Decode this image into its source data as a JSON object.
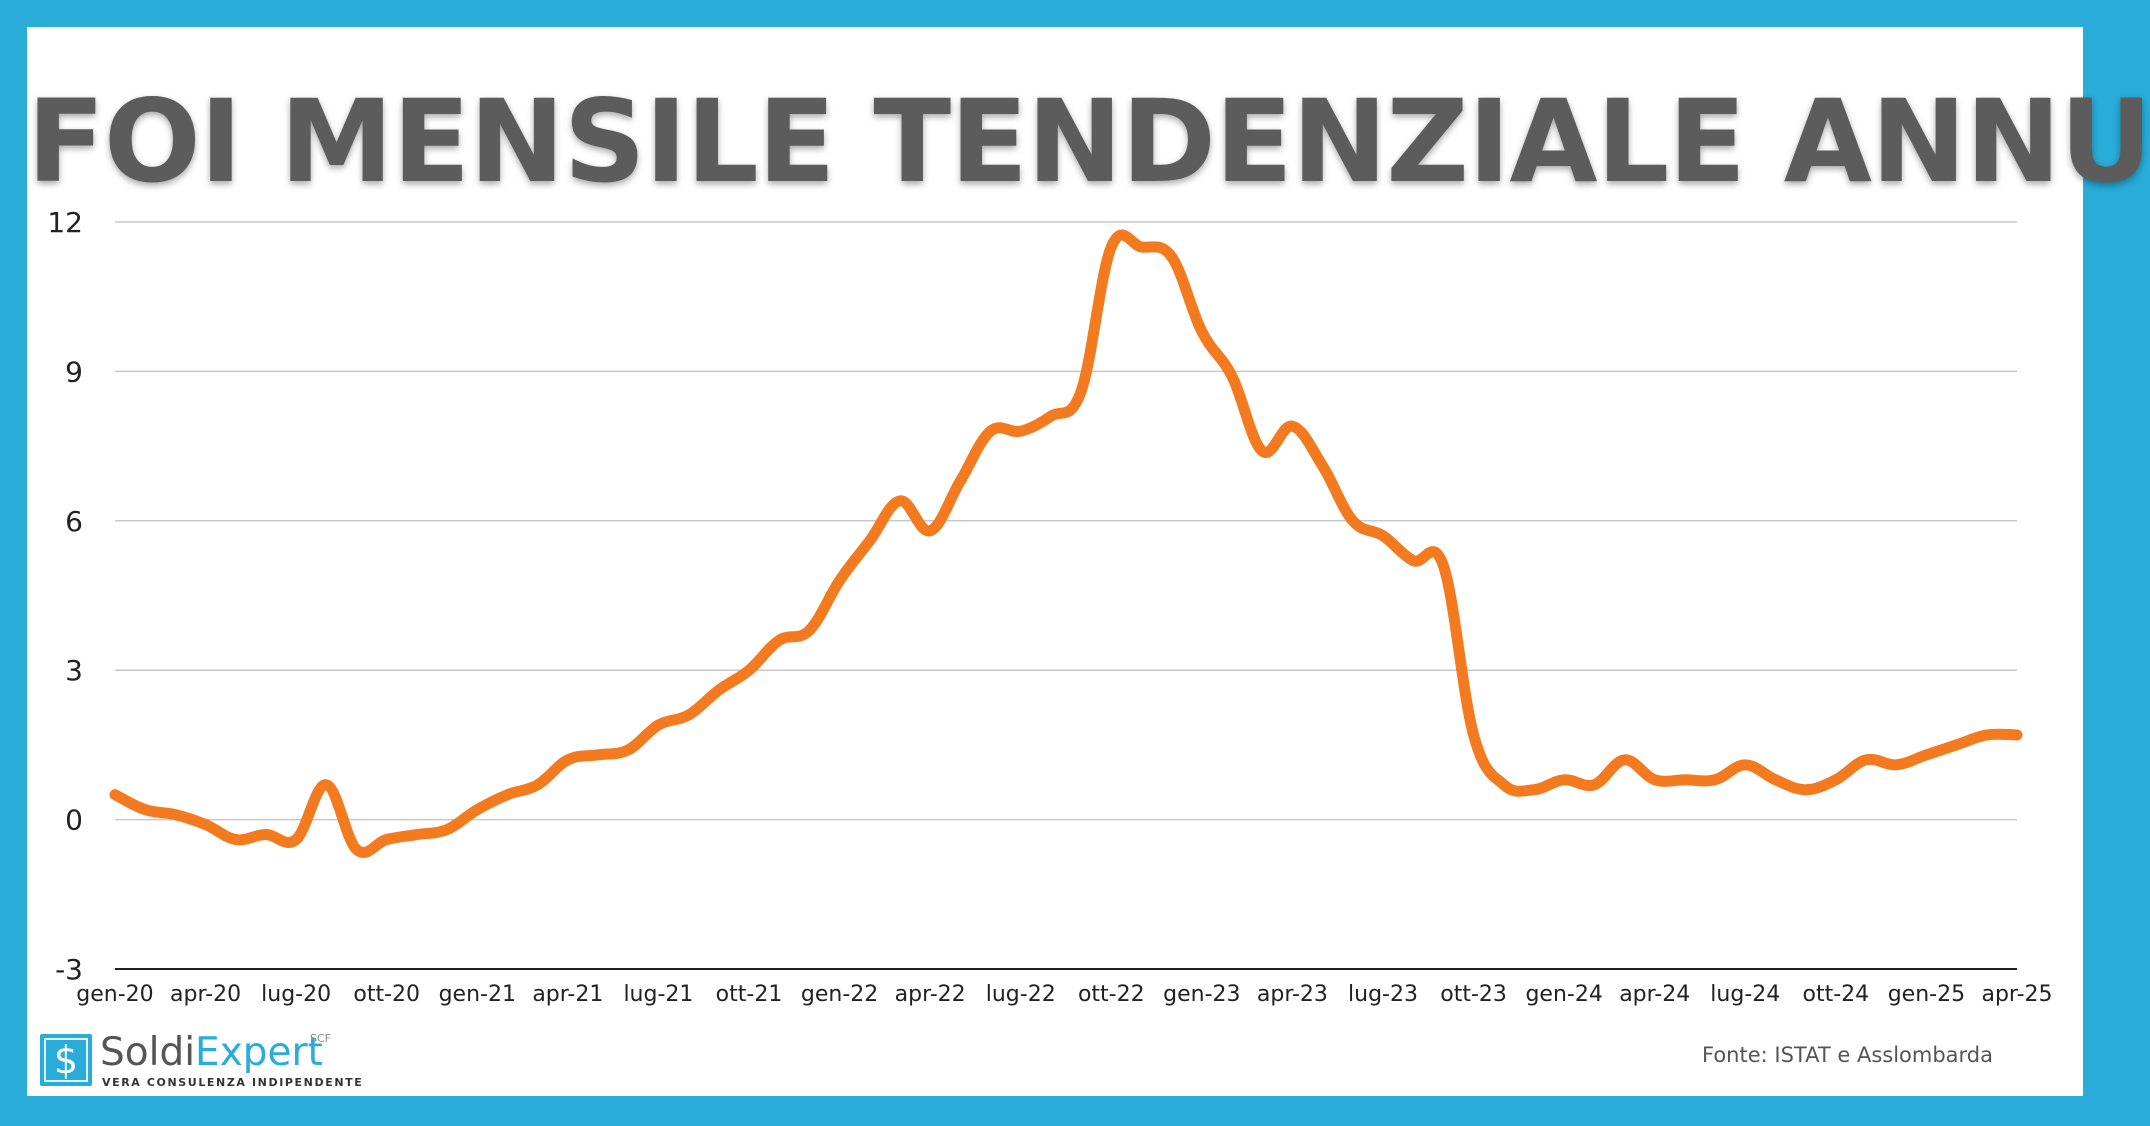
{
  "title": "FOI MENSILE TENDENZIALE ANNUO",
  "source": "Fonte: ISTAT e Asslombarda",
  "logo": {
    "symbol": "$",
    "name_part1": "Soldi",
    "name_part2": "Expert",
    "superscript": "SCF",
    "tagline": "VERA CONSULENZA INDIPENDENTE"
  },
  "colors": {
    "frame": "#29acd9",
    "line": "#f47a1f",
    "title": "#5c5c5c",
    "grid": "#c8c8c8"
  },
  "chart_data": {
    "type": "line",
    "title": "FOI MENSILE TENDENZIALE ANNUO",
    "xlabel": "",
    "ylabel": "",
    "ylim": [
      -3,
      12
    ],
    "yticks": [
      12,
      9,
      6,
      3,
      0,
      -3
    ],
    "grid": true,
    "legend": "none",
    "x": [
      "gen-20",
      "feb-20",
      "mar-20",
      "apr-20",
      "mag-20",
      "giu-20",
      "lug-20",
      "ago-20",
      "set-20",
      "ott-20",
      "nov-20",
      "dic-20",
      "gen-21",
      "feb-21",
      "mar-21",
      "apr-21",
      "mag-21",
      "giu-21",
      "lug-21",
      "ago-21",
      "set-21",
      "ott-21",
      "nov-21",
      "dic-21",
      "gen-22",
      "feb-22",
      "mar-22",
      "apr-22",
      "mag-22",
      "giu-22",
      "lug-22",
      "ago-22",
      "set-22",
      "ott-22",
      "nov-22",
      "dic-22",
      "gen-23",
      "feb-23",
      "mar-23",
      "apr-23",
      "mag-23",
      "giu-23",
      "lug-23",
      "ago-23",
      "set-23",
      "ott-23",
      "nov-23",
      "dic-23",
      "gen-24",
      "feb-24",
      "mar-24",
      "apr-24",
      "mag-24",
      "giu-24",
      "lug-24",
      "ago-24",
      "set-24",
      "ott-24",
      "nov-24",
      "dic-24",
      "gen-25",
      "feb-25",
      "mar-25",
      "apr-25"
    ],
    "xtick_labels": [
      "gen-20",
      "apr-20",
      "lug-20",
      "ott-20",
      "gen-21",
      "apr-21",
      "lug-21",
      "ott-21",
      "gen-22",
      "apr-22",
      "lug-22",
      "ott-22",
      "gen-23",
      "apr-23",
      "lug-23",
      "ott-23",
      "gen-24",
      "apr-24",
      "lug-24",
      "ott-24",
      "gen-25",
      "apr-25"
    ],
    "series": [
      {
        "values": [
          0.5,
          0.2,
          0.1,
          -0.1,
          -0.4,
          -0.3,
          -0.4,
          0.7,
          -0.6,
          -0.4,
          -0.3,
          -0.2,
          0.2,
          0.5,
          0.7,
          1.2,
          1.3,
          1.4,
          1.9,
          2.1,
          2.6,
          3.0,
          3.6,
          3.8,
          4.8,
          5.6,
          6.4,
          5.8,
          6.8,
          7.8,
          7.8,
          8.1,
          8.6,
          11.5,
          11.5,
          11.3,
          9.8,
          8.9,
          7.4,
          7.9,
          7.1,
          6.0,
          5.7,
          5.2,
          5.1,
          1.7,
          0.7,
          0.6,
          0.8,
          0.7,
          1.2,
          0.8,
          0.8,
          0.8,
          1.1,
          0.8,
          0.6,
          0.8,
          1.2,
          1.1,
          1.3,
          1.5,
          1.7,
          1.7
        ]
      }
    ]
  }
}
